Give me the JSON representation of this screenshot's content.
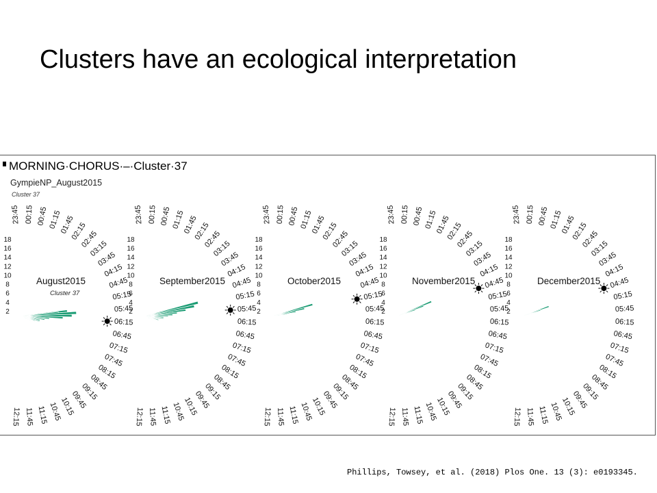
{
  "slide": {
    "title": "Clusters have an ecological interpretation",
    "citation": "Phillips,  Towsey, et al. (2018) Plos One. 13 (3): e0193345."
  },
  "figure": {
    "heading": "MORNING·CHORUS·–·Cluster·37",
    "site_label": "GympieNP_August2015",
    "cluster_label": "Cluster 37",
    "accent_color": "#1a9b73"
  },
  "chart_data": [
    {
      "type": "rose",
      "title": "August2015",
      "subtitle": "Cluster 37",
      "radial_ticks": [
        "2",
        "4",
        "6",
        "8",
        "10",
        "12",
        "14",
        "16",
        "18"
      ],
      "time_labels": [
        "23:45",
        "00:15",
        "00:45",
        "01:15",
        "01:45",
        "02:15",
        "02:45",
        "03:15",
        "03:45",
        "04:15",
        "04:45",
        "05:15",
        "05:45",
        "06:15",
        "06:45",
        "07:15",
        "07:45",
        "08:15",
        "08:45",
        "09:15",
        "09:45",
        "10:15",
        "10:45",
        "11:15",
        "11:45",
        "12:15"
      ],
      "sunrise": "06:15",
      "bars": [
        {
          "angle": 84,
          "value": 10
        },
        {
          "angle": 85,
          "value": 8
        },
        {
          "angle": 87,
          "value": 12
        },
        {
          "angle": 90,
          "value": 11
        },
        {
          "angle": 93,
          "value": 9
        },
        {
          "angle": 96,
          "value": 6
        },
        {
          "angle": 100,
          "value": 5
        },
        {
          "angle": 104,
          "value": 4
        },
        {
          "angle": 108,
          "value": 4
        },
        {
          "angle": 112,
          "value": 3
        },
        {
          "angle": 117,
          "value": 2
        },
        {
          "angle": 122,
          "value": 2
        },
        {
          "angle": 128,
          "value": 1
        },
        {
          "angle": 134,
          "value": 1
        }
      ]
    },
    {
      "type": "rose",
      "title": "September2015",
      "radial_ticks": [
        "2",
        "4",
        "6",
        "8",
        "10",
        "12",
        "14",
        "16",
        "18"
      ],
      "time_labels": [
        "23:45",
        "00:15",
        "00:45",
        "01:15",
        "01:45",
        "02:15",
        "02:45",
        "03:15",
        "03:45",
        "04:15",
        "04:45",
        "05:15",
        "05:45",
        "06:15",
        "06:45",
        "07:15",
        "07:45",
        "08:15",
        "08:45",
        "09:15",
        "09:45",
        "10:15",
        "10:45",
        "11:15",
        "11:45",
        "12:15"
      ],
      "sunrise": "05:45",
      "bars": [
        {
          "angle": 76,
          "value": 12
        },
        {
          "angle": 79,
          "value": 11
        },
        {
          "angle": 82,
          "value": 9
        },
        {
          "angle": 85,
          "value": 7
        },
        {
          "angle": 88,
          "value": 6
        },
        {
          "angle": 91,
          "value": 5
        },
        {
          "angle": 95,
          "value": 4
        },
        {
          "angle": 99,
          "value": 4
        },
        {
          "angle": 104,
          "value": 3
        },
        {
          "angle": 109,
          "value": 3
        },
        {
          "angle": 115,
          "value": 2
        },
        {
          "angle": 121,
          "value": 2
        },
        {
          "angle": 128,
          "value": 1
        }
      ]
    },
    {
      "type": "rose",
      "title": "October2015",
      "radial_ticks": [
        "2",
        "4",
        "6",
        "8",
        "10",
        "12",
        "14",
        "16",
        "18"
      ],
      "time_labels": [
        "23:45",
        "00:15",
        "00:45",
        "01:15",
        "01:45",
        "02:15",
        "02:45",
        "03:15",
        "03:45",
        "04:15",
        "04:45",
        "05:15",
        "05:45",
        "06:15",
        "06:45",
        "07:15",
        "07:45",
        "08:15",
        "08:45",
        "09:15",
        "09:45",
        "10:15",
        "10:45",
        "11:15",
        "11:45",
        "12:15"
      ],
      "sunrise": "05:15",
      "bars": [
        {
          "angle": 74,
          "value": 9
        },
        {
          "angle": 77,
          "value": 7
        },
        {
          "angle": 80,
          "value": 5
        },
        {
          "angle": 83,
          "value": 3
        },
        {
          "angle": 86,
          "value": 2
        }
      ]
    },
    {
      "type": "rose",
      "title": "November2015",
      "radial_ticks": [
        "2",
        "4",
        "6",
        "8",
        "10",
        "12",
        "14",
        "16",
        "18"
      ],
      "time_labels": [
        "23:45",
        "00:15",
        "00:45",
        "01:15",
        "01:45",
        "02:15",
        "02:45",
        "03:15",
        "03:45",
        "04:15",
        "04:45",
        "05:15",
        "05:45",
        "06:15",
        "06:45",
        "07:15",
        "07:45",
        "08:15",
        "08:45",
        "09:15",
        "09:45",
        "10:15",
        "10:45",
        "11:15",
        "11:45",
        "12:15"
      ],
      "sunrise": "04:45",
      "bars": [
        {
          "angle": 67,
          "value": 8
        },
        {
          "angle": 69,
          "value": 6
        },
        {
          "angle": 71,
          "value": 4
        },
        {
          "angle": 73,
          "value": 2
        }
      ]
    },
    {
      "type": "rose",
      "title": "December2015",
      "radial_ticks": [
        "2",
        "4",
        "6",
        "8",
        "10",
        "12",
        "14",
        "16",
        "18"
      ],
      "time_labels": [
        "23:45",
        "00:15",
        "00:45",
        "01:15",
        "01:45",
        "02:15",
        "02:45",
        "03:15",
        "03:45",
        "04:15",
        "04:45",
        "05:15",
        "05:45",
        "06:15",
        "06:45",
        "07:15",
        "07:45",
        "08:15",
        "08:45",
        "09:15",
        "09:45",
        "10:15",
        "10:45",
        "11:15",
        "11:45",
        "12:15"
      ],
      "sunrise": "04:45",
      "bars": [
        {
          "angle": 70,
          "value": 6
        },
        {
          "angle": 72,
          "value": 4
        },
        {
          "angle": 74,
          "value": 2
        }
      ]
    }
  ]
}
